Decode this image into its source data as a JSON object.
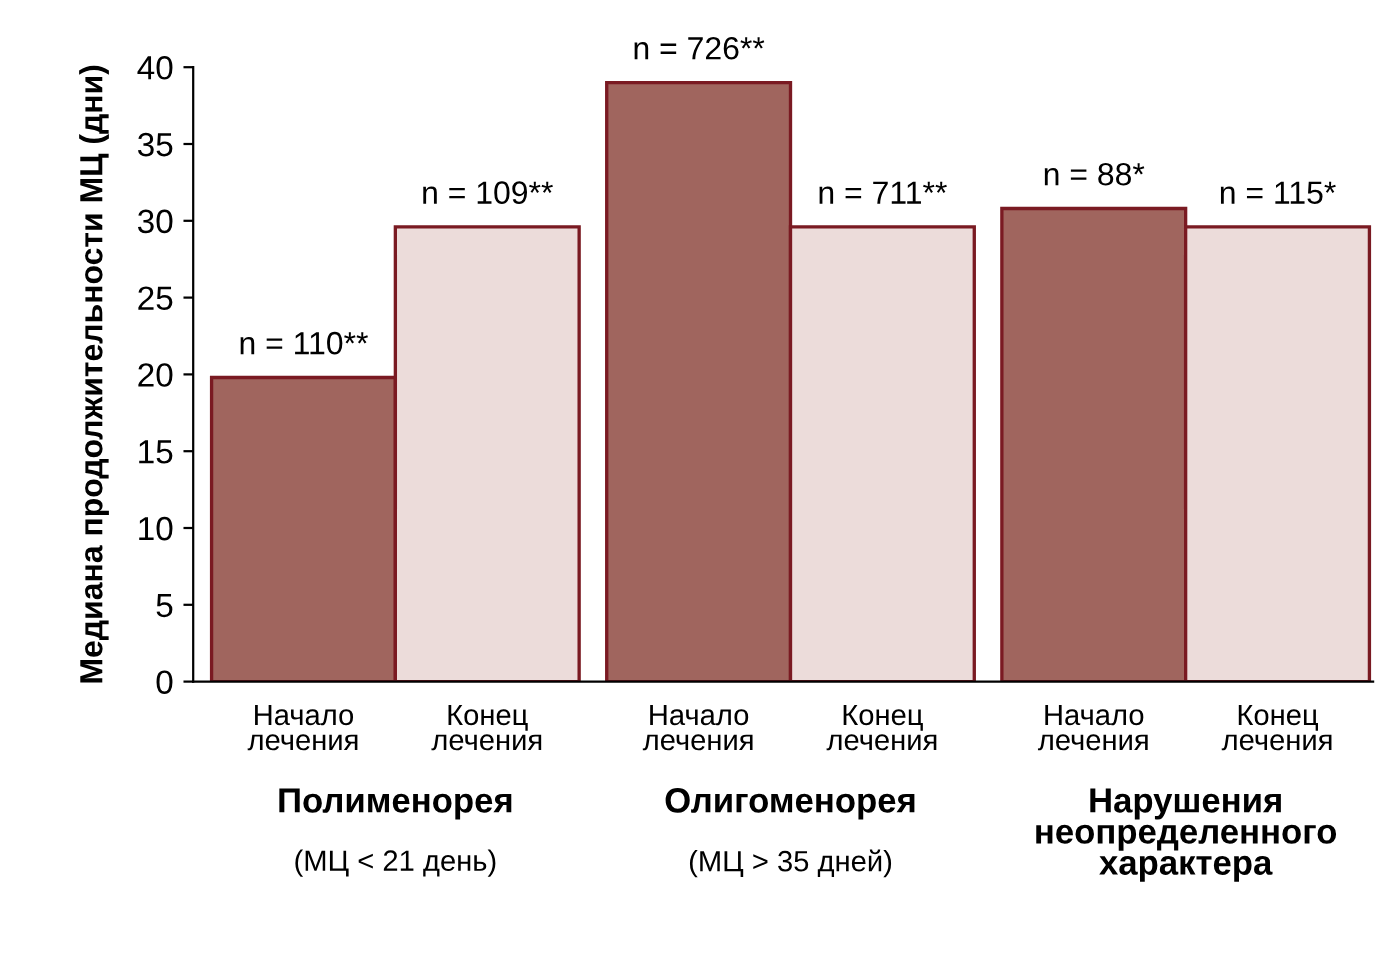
{
  "chart_data": {
    "type": "bar",
    "ylabel": "Медиана продолжительности МЦ (дни)",
    "categories": [
      "Начало\nлечения",
      "Конец\nлечения",
      "Начало\nлечения",
      "Конец\nлечения",
      "Начало\nлечения",
      "Конец\nлечения"
    ],
    "values": [
      19.8,
      29.6,
      39,
      29.6,
      30.8,
      29.6
    ],
    "colors": [
      "#a0655e",
      "#ecdcda",
      "#a0655e",
      "#ecdcda",
      "#a0655e",
      "#ecdcda"
    ],
    "ylim": [
      0,
      40
    ],
    "yticks": [
      0,
      5,
      10,
      15,
      20,
      25,
      30,
      35,
      40
    ],
    "grid": false,
    "annotations": [
      "n = 110**",
      "n = 109**",
      "n = 726**",
      "n = 711**",
      "n = 88*",
      "n = 115*",
      "Полименорея",
      "(МЦ < 21 день)",
      "Олигоменорея",
      "(МЦ > 35 дней)",
      "Нарушения\nнеопределенного\nхарактера"
    ]
  }
}
